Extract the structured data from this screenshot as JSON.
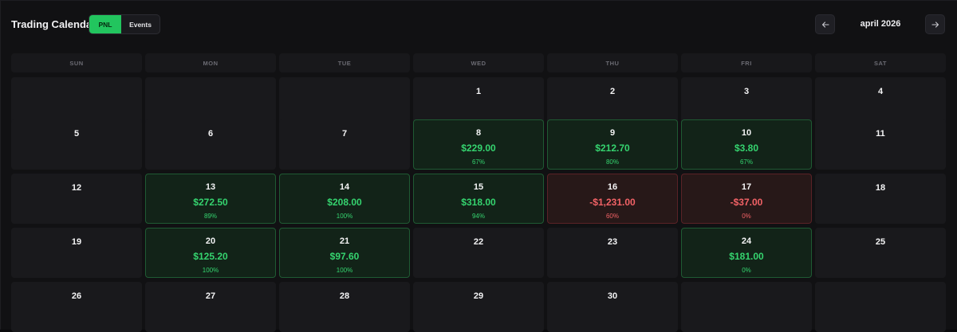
{
  "header": {
    "title": "Trading Calendar",
    "toggle": [
      "PNL",
      "Events"
    ],
    "month": "april 2026"
  },
  "weekdays": [
    "SUN",
    "MON",
    "TUE",
    "WED",
    "THU",
    "FRI",
    "SAT"
  ],
  "weeks": [
    [
      {
        "day": ""
      },
      {
        "day": ""
      },
      {
        "day": ""
      },
      {
        "day": "1"
      },
      {
        "day": "2"
      },
      {
        "day": "3"
      },
      {
        "day": "4"
      }
    ],
    [
      {
        "day": "5"
      },
      {
        "day": "6"
      },
      {
        "day": "7"
      },
      {
        "day": "8",
        "pnl": "$229.00",
        "rate": "67%",
        "status": "pos"
      },
      {
        "day": "9",
        "pnl": "$212.70",
        "rate": "80%",
        "status": "pos"
      },
      {
        "day": "10",
        "pnl": "$3.80",
        "rate": "67%",
        "status": "pos"
      },
      {
        "day": "11"
      }
    ],
    [
      {
        "day": "12"
      },
      {
        "day": "13",
        "pnl": "$272.50",
        "rate": "89%",
        "status": "pos"
      },
      {
        "day": "14",
        "pnl": "$208.00",
        "rate": "100%",
        "status": "pos"
      },
      {
        "day": "15",
        "pnl": "$318.00",
        "rate": "94%",
        "status": "pos"
      },
      {
        "day": "16",
        "pnl": "-$1,231.00",
        "rate": "60%",
        "status": "neg"
      },
      {
        "day": "17",
        "pnl": "-$37.00",
        "rate": "0%",
        "status": "neg"
      },
      {
        "day": "18"
      }
    ],
    [
      {
        "day": "19"
      },
      {
        "day": "20",
        "pnl": "$125.20",
        "rate": "100%",
        "status": "pos"
      },
      {
        "day": "21",
        "pnl": "$97.60",
        "rate": "100%",
        "status": "pos"
      },
      {
        "day": "22"
      },
      {
        "day": "23"
      },
      {
        "day": "24",
        "pnl": "$181.00",
        "rate": "0%",
        "status": "pos"
      },
      {
        "day": "25"
      }
    ],
    [
      {
        "day": "26"
      },
      {
        "day": "27"
      },
      {
        "day": "28"
      },
      {
        "day": "29"
      },
      {
        "day": "30"
      },
      {
        "day": ""
      },
      {
        "day": ""
      }
    ]
  ]
}
